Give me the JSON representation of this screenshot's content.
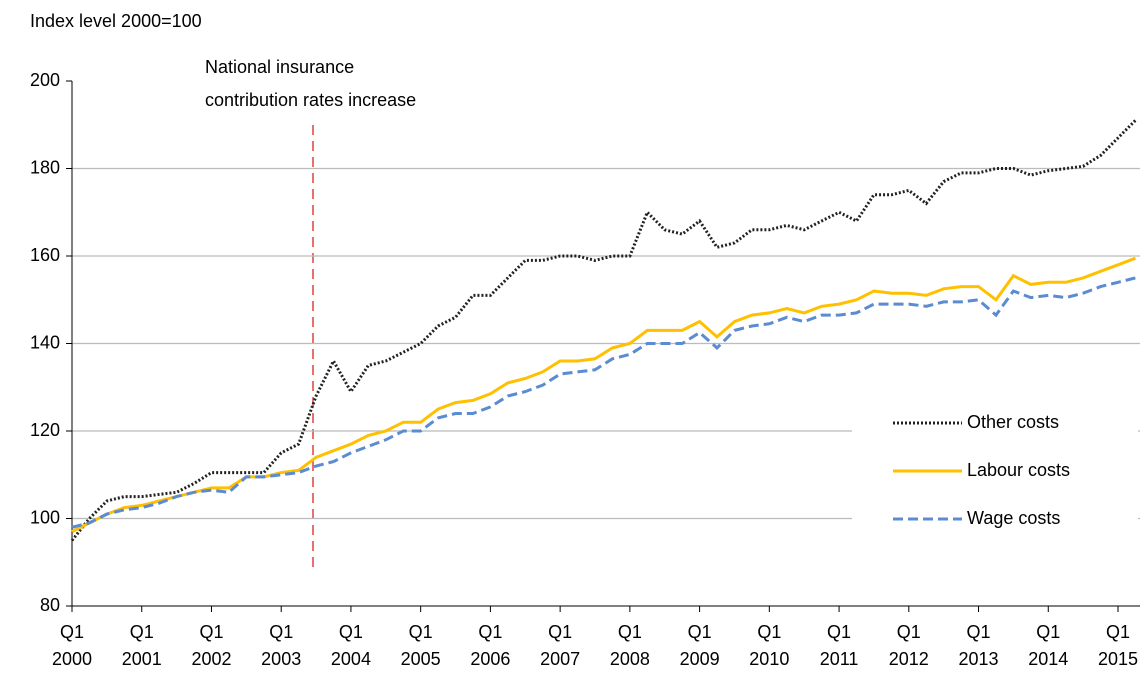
{
  "chart_data": {
    "type": "line",
    "y_axis_label": "Index level 2000=100",
    "annotation": [
      "National insurance",
      "contribution rates increase"
    ],
    "categories": [
      "Q1 2000",
      null,
      null,
      null,
      "Q1 2001",
      null,
      null,
      null,
      "Q1 2002",
      null,
      null,
      null,
      "Q1 2003",
      null,
      null,
      null,
      "Q1 2004",
      null,
      null,
      null,
      "Q1 2005",
      null,
      null,
      null,
      "Q1 2006",
      null,
      null,
      null,
      "Q1 2007",
      null,
      null,
      null,
      "Q1 2008",
      null,
      null,
      null,
      "Q1 2009",
      null,
      null,
      null,
      "Q1 2010",
      null,
      null,
      null,
      "Q1 2011",
      null,
      null,
      null,
      "Q1 2012",
      null,
      null,
      null,
      "Q1 2013",
      null,
      null,
      null,
      "Q1 2014",
      null,
      null,
      null,
      "Q1 2015",
      null
    ],
    "series": [
      {
        "name": "Other costs",
        "color": "#222222",
        "style": "dotted",
        "values": [
          95,
          100,
          104,
          105,
          105,
          105.5,
          106,
          108,
          110.5,
          110.5,
          110.5,
          110.5,
          115,
          117,
          128,
          136,
          129,
          135,
          136,
          138,
          140,
          144,
          146,
          151,
          151,
          155,
          159,
          159,
          160,
          160,
          159,
          160,
          160,
          170,
          166,
          165,
          168,
          162,
          163,
          166,
          166,
          167,
          166,
          168,
          170,
          168,
          174,
          174,
          175,
          172,
          177,
          179,
          179,
          180,
          180,
          178.5,
          179.5,
          180,
          180.5,
          183,
          187,
          191
        ]
      },
      {
        "name": "Labour costs",
        "color": "#ffc000",
        "style": "solid",
        "values": [
          97,
          99,
          101,
          102.5,
          103,
          104,
          105,
          106,
          107,
          107,
          109.5,
          109.5,
          110.5,
          111,
          114,
          115.5,
          117,
          119,
          120,
          122,
          122,
          125,
          126.5,
          127,
          128.5,
          131,
          132,
          133.5,
          136,
          136,
          136.5,
          139,
          140,
          143,
          143,
          143,
          145,
          141.5,
          145,
          146.5,
          147,
          148,
          147,
          148.5,
          149,
          150,
          152,
          151.5,
          151.5,
          151,
          152.5,
          153,
          153,
          150,
          155.5,
          153.5,
          154,
          154,
          155,
          156.5,
          158,
          159.5
        ]
      },
      {
        "name": "Wage costs",
        "color": "#5b8bd0",
        "style": "dashed",
        "values": [
          98,
          99,
          101,
          102,
          102.5,
          103.5,
          105,
          106,
          106.5,
          106,
          109.5,
          109.5,
          110,
          110.5,
          112,
          113,
          115,
          116.5,
          118,
          120,
          120,
          123,
          124,
          124,
          125.5,
          128,
          129,
          130.5,
          133,
          133.5,
          134,
          136.5,
          137.5,
          140,
          140,
          140,
          142.5,
          139,
          143,
          144,
          144.5,
          146,
          145,
          146.5,
          146.5,
          147,
          149,
          149,
          149,
          148.5,
          149.5,
          149.5,
          150,
          146.5,
          152,
          150.5,
          151,
          150.5,
          151.5,
          153,
          154,
          155
        ]
      }
    ],
    "ylim": [
      80,
      200
    ],
    "yticks": [
      80,
      100,
      120,
      140,
      160,
      180,
      200
    ],
    "grid": true,
    "legend": "right"
  }
}
